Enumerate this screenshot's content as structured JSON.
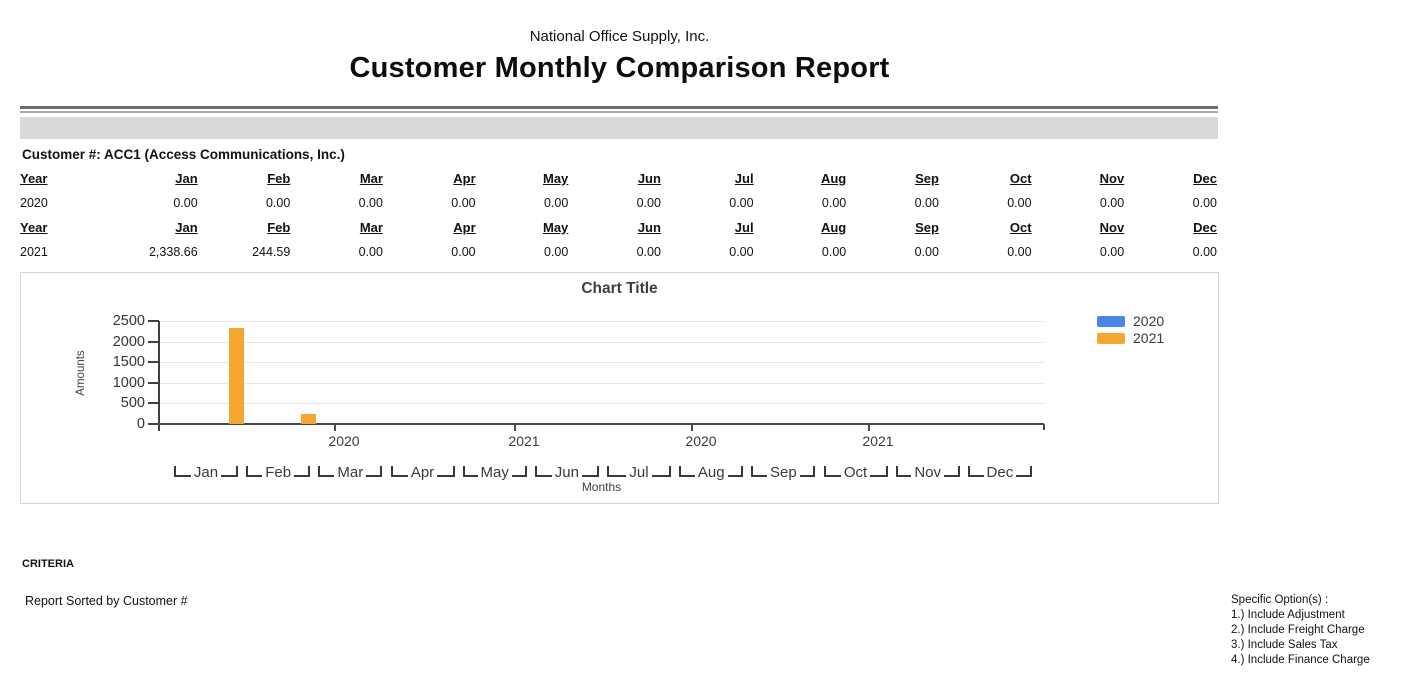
{
  "header": {
    "company": "National Office Supply, Inc.",
    "title": "Customer Monthly Comparison Report"
  },
  "table": {
    "customer_line": "Customer #: ACC1 (Access Communications, Inc.)",
    "columns": [
      "Year",
      "Jan",
      "Feb",
      "Mar",
      "Apr",
      "May",
      "Jun",
      "Jul",
      "Aug",
      "Sep",
      "Oct",
      "Nov",
      "Dec"
    ],
    "blocks": [
      {
        "year": "2020",
        "values": [
          "0.00",
          "0.00",
          "0.00",
          "0.00",
          "0.00",
          "0.00",
          "0.00",
          "0.00",
          "0.00",
          "0.00",
          "0.00",
          "0.00"
        ]
      },
      {
        "year": "2021",
        "values": [
          "2,338.66",
          "244.59",
          "0.00",
          "0.00",
          "0.00",
          "0.00",
          "0.00",
          "0.00",
          "0.00",
          "0.00",
          "0.00",
          "0.00"
        ]
      }
    ]
  },
  "chart_data": {
    "type": "bar",
    "title": "Chart Title",
    "xlabel": "Months",
    "ylabel": "Amounts",
    "categories": [
      "Jan",
      "Feb",
      "Mar",
      "Apr",
      "May",
      "Jun",
      "Jul",
      "Aug",
      "Sep",
      "Oct",
      "Nov",
      "Dec"
    ],
    "series": [
      {
        "name": "2020",
        "color": "#4a86e8",
        "values": [
          0,
          0,
          0,
          0,
          0,
          0,
          0,
          0,
          0,
          0,
          0,
          0
        ]
      },
      {
        "name": "2021",
        "color": "#f6a731",
        "values": [
          2338.66,
          244.59,
          0,
          0,
          0,
          0,
          0,
          0,
          0,
          0,
          0,
          0
        ]
      }
    ],
    "yticks": [
      0,
      500,
      1000,
      1500,
      2000,
      2500
    ],
    "ylim": [
      0,
      2500
    ],
    "year_axis_labels": [
      "2020",
      "2021",
      "2020",
      "2021"
    ],
    "legend_position": "right",
    "grid": true
  },
  "footer": {
    "criteria_label": "CRITERIA",
    "sorted_by": "Report Sorted by Customer #",
    "options_title": "Specific Option(s) :",
    "options": [
      "1.) Include Adjustment",
      "2.) Include Freight Charge",
      "3.) Include Sales Tax",
      "4.) Include Finance Charge"
    ]
  }
}
